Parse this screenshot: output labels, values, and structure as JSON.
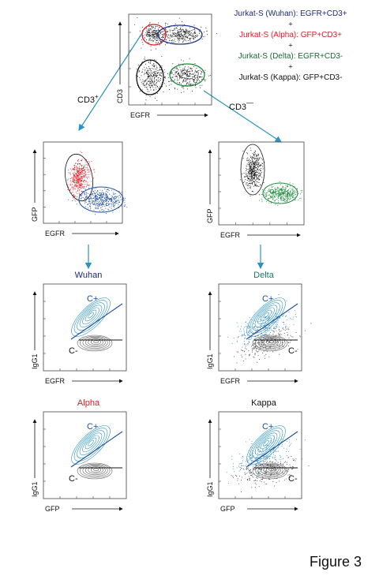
{
  "top_panel": {
    "y_label": "CD3",
    "x_label": "EGFR"
  },
  "legend": [
    "Jurkat-S (Wuhan): EGFR+CD3+",
    "+",
    "Jurkat-S (Alpha): GFP+CD3+",
    "+",
    "Jurkat-S (Delta): EGFR+CD3-",
    "+",
    "Jurkat-S (Kappa): GFP+CD3-"
  ],
  "branch_labels": {
    "left": "CD3",
    "left_sup": "+",
    "right": "CD3",
    "right_sup": "—"
  },
  "gate_panels": [
    {
      "y_label": "GFP",
      "x_label": "EGFR"
    },
    {
      "y_label": "GFP",
      "x_label": "EGFR"
    }
  ],
  "stain_panels": [
    {
      "title": "Wuhan",
      "y_label": "IgG1",
      "x_label": "EGFR",
      "positive_label": "C+",
      "negative_label": "C-"
    },
    {
      "title": "Delta",
      "y_label": "IgG1",
      "x_label": "EGFR",
      "positive_label": "C+",
      "negative_label": "C-"
    },
    {
      "title": "Alpha",
      "y_label": "IgG1",
      "x_label": "GFP",
      "positive_label": "C+",
      "negative_label": "C-"
    },
    {
      "title": "Kappa",
      "y_label": "IgG1",
      "x_label": "GFP",
      "positive_label": "C+",
      "negative_label": "C-"
    }
  ],
  "figure_label": "Figure 3"
}
